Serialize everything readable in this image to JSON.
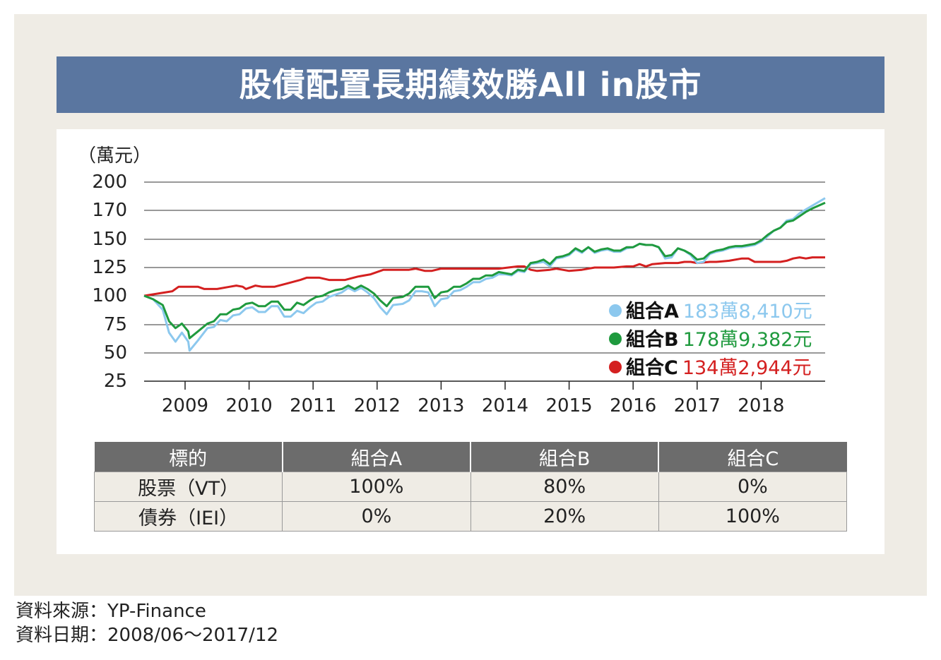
{
  "title": "股債配置長期績效勝All in股市",
  "chart_data": {
    "type": "line",
    "unit_label": "（萬元）",
    "ylim": [
      25,
      200
    ],
    "y_ticks": [
      200,
      170,
      150,
      125,
      100,
      75,
      50,
      25
    ],
    "x_ticks": [
      "2009",
      "2010",
      "2011",
      "2012",
      "2013",
      "2014",
      "2015",
      "2016",
      "2017",
      "2018"
    ],
    "grid": true,
    "legend_position": "bottom-right",
    "series": [
      {
        "name": "組合A",
        "final_label": "183萬8,410元",
        "color": "#8cc8ee",
        "points": [
          [
            2008.46,
            100
          ],
          [
            2008.6,
            97
          ],
          [
            2008.75,
            88
          ],
          [
            2008.85,
            68
          ],
          [
            2008.95,
            60
          ],
          [
            2009.05,
            68
          ],
          [
            2009.15,
            60
          ],
          [
            2009.17,
            52
          ],
          [
            2009.3,
            61
          ],
          [
            2009.45,
            72
          ],
          [
            2009.55,
            73
          ],
          [
            2009.65,
            79
          ],
          [
            2009.75,
            78
          ],
          [
            2009.85,
            83
          ],
          [
            2009.95,
            84
          ],
          [
            2010.05,
            89
          ],
          [
            2010.15,
            90
          ],
          [
            2010.25,
            86
          ],
          [
            2010.35,
            86
          ],
          [
            2010.45,
            91
          ],
          [
            2010.55,
            91
          ],
          [
            2010.65,
            82
          ],
          [
            2010.75,
            82
          ],
          [
            2010.85,
            87
          ],
          [
            2010.95,
            85
          ],
          [
            2011.05,
            90
          ],
          [
            2011.15,
            94
          ],
          [
            2011.25,
            95
          ],
          [
            2011.35,
            99
          ],
          [
            2011.45,
            101
          ],
          [
            2011.55,
            103
          ],
          [
            2011.65,
            107
          ],
          [
            2011.75,
            104
          ],
          [
            2011.85,
            107
          ],
          [
            2011.95,
            103
          ],
          [
            2012.05,
            98
          ],
          [
            2012.15,
            90
          ],
          [
            2012.25,
            84
          ],
          [
            2012.35,
            92
          ],
          [
            2012.5,
            93
          ],
          [
            2012.6,
            96
          ],
          [
            2012.7,
            104
          ],
          [
            2012.8,
            104
          ],
          [
            2012.9,
            103
          ],
          [
            2013.0,
            91
          ],
          [
            2013.1,
            97
          ],
          [
            2013.2,
            98
          ],
          [
            2013.3,
            104
          ],
          [
            2013.4,
            105
          ],
          [
            2013.5,
            108
          ],
          [
            2013.6,
            112
          ],
          [
            2013.7,
            112
          ],
          [
            2013.8,
            115
          ],
          [
            2013.9,
            116
          ],
          [
            2014.0,
            119
          ],
          [
            2014.1,
            119
          ],
          [
            2014.2,
            118
          ],
          [
            2014.3,
            122
          ],
          [
            2014.4,
            121
          ],
          [
            2014.5,
            128
          ],
          [
            2014.6,
            129
          ],
          [
            2014.7,
            130
          ],
          [
            2014.8,
            126
          ],
          [
            2014.9,
            133
          ],
          [
            2015.0,
            134
          ],
          [
            2015.1,
            136
          ],
          [
            2015.2,
            141
          ],
          [
            2015.3,
            138
          ],
          [
            2015.4,
            143
          ],
          [
            2015.5,
            138
          ],
          [
            2015.6,
            140
          ],
          [
            2015.7,
            141
          ],
          [
            2015.8,
            139
          ],
          [
            2015.9,
            139
          ],
          [
            2016.0,
            142
          ],
          [
            2016.1,
            143
          ],
          [
            2016.2,
            146
          ],
          [
            2016.3,
            145
          ],
          [
            2016.4,
            145
          ],
          [
            2016.5,
            143
          ],
          [
            2016.6,
            133
          ],
          [
            2016.7,
            134
          ],
          [
            2016.8,
            142
          ],
          [
            2016.9,
            140
          ],
          [
            2017.0,
            136
          ],
          [
            2017.1,
            129
          ],
          [
            2017.2,
            130
          ],
          [
            2017.3,
            137
          ],
          [
            2017.4,
            139
          ],
          [
            2017.5,
            140
          ],
          [
            2017.6,
            142
          ],
          [
            2017.7,
            143
          ],
          [
            2017.8,
            143
          ],
          [
            2017.9,
            144
          ],
          [
            2018.0,
            145
          ],
          [
            2018.1,
            148
          ],
          [
            2018.2,
            152
          ],
          [
            2018.3,
            156
          ],
          [
            2018.4,
            158
          ],
          [
            2018.5,
            163
          ],
          [
            2018.6,
            164
          ],
          [
            2018.7,
            168
          ],
          [
            2018.8,
            171
          ],
          [
            2018.9,
            175
          ],
          [
            2019.0,
            179
          ],
          [
            2019.1,
            183
          ]
        ]
      },
      {
        "name": "組合B",
        "final_label": "178萬9,382元",
        "color": "#1f9a3e",
        "points": [
          [
            2008.46,
            100
          ],
          [
            2008.6,
            97
          ],
          [
            2008.75,
            92
          ],
          [
            2008.85,
            78
          ],
          [
            2008.95,
            72
          ],
          [
            2009.05,
            76
          ],
          [
            2009.15,
            69
          ],
          [
            2009.17,
            63
          ],
          [
            2009.3,
            69
          ],
          [
            2009.45,
            76
          ],
          [
            2009.55,
            78
          ],
          [
            2009.65,
            84
          ],
          [
            2009.75,
            84
          ],
          [
            2009.85,
            88
          ],
          [
            2009.95,
            89
          ],
          [
            2010.05,
            93
          ],
          [
            2010.15,
            94
          ],
          [
            2010.25,
            91
          ],
          [
            2010.35,
            91
          ],
          [
            2010.45,
            95
          ],
          [
            2010.55,
            95
          ],
          [
            2010.65,
            88
          ],
          [
            2010.75,
            88
          ],
          [
            2010.85,
            94
          ],
          [
            2010.95,
            92
          ],
          [
            2011.05,
            96
          ],
          [
            2011.15,
            99
          ],
          [
            2011.25,
            100
          ],
          [
            2011.35,
            103
          ],
          [
            2011.45,
            105
          ],
          [
            2011.55,
            106
          ],
          [
            2011.65,
            109
          ],
          [
            2011.75,
            106
          ],
          [
            2011.85,
            109
          ],
          [
            2011.95,
            106
          ],
          [
            2012.05,
            102
          ],
          [
            2012.15,
            96
          ],
          [
            2012.25,
            91
          ],
          [
            2012.35,
            98
          ],
          [
            2012.5,
            99
          ],
          [
            2012.6,
            102
          ],
          [
            2012.7,
            108
          ],
          [
            2012.8,
            108
          ],
          [
            2012.9,
            108
          ],
          [
            2013.0,
            98
          ],
          [
            2013.1,
            103
          ],
          [
            2013.2,
            104
          ],
          [
            2013.3,
            108
          ],
          [
            2013.4,
            108
          ],
          [
            2013.5,
            111
          ],
          [
            2013.6,
            115
          ],
          [
            2013.7,
            115
          ],
          [
            2013.8,
            118
          ],
          [
            2013.9,
            118
          ],
          [
            2014.0,
            121
          ],
          [
            2014.1,
            120
          ],
          [
            2014.2,
            119
          ],
          [
            2014.3,
            123
          ],
          [
            2014.4,
            122
          ],
          [
            2014.5,
            129
          ],
          [
            2014.6,
            130
          ],
          [
            2014.7,
            132
          ],
          [
            2014.8,
            128
          ],
          [
            2014.9,
            134
          ],
          [
            2015.0,
            135
          ],
          [
            2015.1,
            137
          ],
          [
            2015.2,
            142
          ],
          [
            2015.3,
            139
          ],
          [
            2015.4,
            143
          ],
          [
            2015.5,
            139
          ],
          [
            2015.6,
            141
          ],
          [
            2015.7,
            142
          ],
          [
            2015.8,
            140
          ],
          [
            2015.9,
            140
          ],
          [
            2016.0,
            143
          ],
          [
            2016.1,
            143
          ],
          [
            2016.2,
            146
          ],
          [
            2016.3,
            145
          ],
          [
            2016.4,
            145
          ],
          [
            2016.5,
            143
          ],
          [
            2016.6,
            135
          ],
          [
            2016.7,
            136
          ],
          [
            2016.8,
            142
          ],
          [
            2016.9,
            140
          ],
          [
            2017.0,
            137
          ],
          [
            2017.1,
            132
          ],
          [
            2017.2,
            133
          ],
          [
            2017.3,
            138
          ],
          [
            2017.4,
            140
          ],
          [
            2017.5,
            141
          ],
          [
            2017.6,
            143
          ],
          [
            2017.7,
            144
          ],
          [
            2017.8,
            144
          ],
          [
            2017.9,
            145
          ],
          [
            2018.0,
            146
          ],
          [
            2018.1,
            149
          ],
          [
            2018.2,
            153
          ],
          [
            2018.3,
            156
          ],
          [
            2018.4,
            158
          ],
          [
            2018.5,
            162
          ],
          [
            2018.6,
            163
          ],
          [
            2018.7,
            166
          ],
          [
            2018.8,
            169
          ],
          [
            2018.9,
            172
          ],
          [
            2019.0,
            175
          ],
          [
            2019.1,
            178
          ]
        ]
      },
      {
        "name": "組合C",
        "final_label": "134萬2,944元",
        "color": "#d42020",
        "points": [
          [
            2008.46,
            100
          ],
          [
            2008.9,
            104
          ],
          [
            2009.0,
            108
          ],
          [
            2009.3,
            108
          ],
          [
            2009.4,
            106
          ],
          [
            2009.6,
            106
          ],
          [
            2009.8,
            108
          ],
          [
            2009.9,
            109
          ],
          [
            2010.0,
            108
          ],
          [
            2010.05,
            106
          ],
          [
            2010.2,
            109
          ],
          [
            2010.3,
            108
          ],
          [
            2010.5,
            108
          ],
          [
            2010.7,
            111
          ],
          [
            2010.9,
            114
          ],
          [
            2011.0,
            116
          ],
          [
            2011.2,
            116
          ],
          [
            2011.35,
            114
          ],
          [
            2011.6,
            114
          ],
          [
            2011.8,
            117
          ],
          [
            2012.0,
            119
          ],
          [
            2012.2,
            123
          ],
          [
            2012.6,
            123
          ],
          [
            2012.7,
            124
          ],
          [
            2012.85,
            122
          ],
          [
            2012.95,
            122
          ],
          [
            2013.1,
            124
          ],
          [
            2013.3,
            124
          ],
          [
            2013.6,
            124
          ],
          [
            2013.7,
            124
          ],
          [
            2014.0,
            124
          ],
          [
            2014.3,
            126
          ],
          [
            2014.4,
            126
          ],
          [
            2014.5,
            123
          ],
          [
            2014.6,
            122
          ],
          [
            2014.8,
            123
          ],
          [
            2014.9,
            124
          ],
          [
            2015.0,
            123
          ],
          [
            2015.1,
            122
          ],
          [
            2015.3,
            123
          ],
          [
            2015.5,
            125
          ],
          [
            2015.6,
            125
          ],
          [
            2015.8,
            125
          ],
          [
            2016.0,
            126
          ],
          [
            2016.1,
            126
          ],
          [
            2016.2,
            128
          ],
          [
            2016.3,
            126
          ],
          [
            2016.4,
            128
          ],
          [
            2016.6,
            129
          ],
          [
            2016.8,
            129
          ],
          [
            2016.9,
            130
          ],
          [
            2017.0,
            130
          ],
          [
            2017.1,
            129
          ],
          [
            2017.3,
            130
          ],
          [
            2017.4,
            130
          ],
          [
            2017.6,
            131
          ],
          [
            2017.8,
            133
          ],
          [
            2017.9,
            133
          ],
          [
            2018.0,
            130
          ],
          [
            2018.2,
            130
          ],
          [
            2018.4,
            130
          ],
          [
            2018.5,
            131
          ],
          [
            2018.6,
            133
          ],
          [
            2018.7,
            134
          ],
          [
            2018.8,
            133
          ],
          [
            2018.9,
            134
          ],
          [
            2019.0,
            134
          ],
          [
            2019.1,
            134
          ]
        ]
      }
    ]
  },
  "table": {
    "headers": [
      "標的",
      "組合A",
      "組合B",
      "組合C"
    ],
    "rows": [
      [
        "股票（VT）",
        "100%",
        "80%",
        "0%"
      ],
      [
        "債券（IEI）",
        "0%",
        "20%",
        "100%"
      ]
    ]
  },
  "footer": {
    "source": "資料來源：YP-Finance",
    "period": "資料日期：2008/06～2017/12"
  }
}
